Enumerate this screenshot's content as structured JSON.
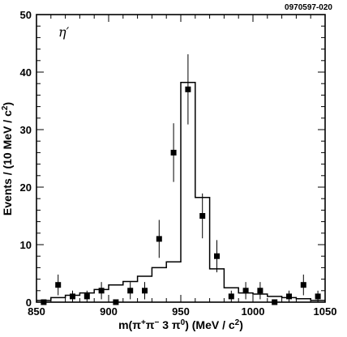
{
  "chart_data": {
    "type": "scatter",
    "title": "",
    "figure_id": "0970597-020",
    "annotation": "η′",
    "xlabel_parts": [
      "m(",
      "π",
      "+",
      "π",
      "−",
      " 3 ",
      "π",
      "0",
      ") (MeV / c",
      "2",
      ")"
    ],
    "ylabel_parts": [
      "Events / (10 MeV / c",
      "2",
      ")"
    ],
    "xlim": [
      850,
      1050
    ],
    "ylim": [
      0,
      50
    ],
    "x_ticks": [
      850,
      900,
      950,
      1000,
      1050
    ],
    "y_ticks": [
      0,
      10,
      20,
      30,
      40,
      50
    ],
    "grid": false,
    "series": [
      {
        "kind": "points_with_errors",
        "x": [
          855,
          865,
          875,
          885,
          895,
          905,
          915,
          925,
          935,
          945,
          955,
          965,
          975,
          985,
          995,
          1005,
          1015,
          1025,
          1035,
          1045
        ],
        "y": [
          0,
          3,
          1,
          1,
          2,
          0,
          2,
          2,
          11,
          26,
          37,
          15,
          8,
          1,
          2,
          2,
          0,
          1,
          3,
          1
        ],
        "yerr": [
          0,
          1.8,
          1.0,
          1.0,
          1.5,
          0,
          1.5,
          1.5,
          3.3,
          5.1,
          6.1,
          3.9,
          2.8,
          1.0,
          1.5,
          1.5,
          0,
          1.0,
          1.8,
          1.0
        ]
      },
      {
        "kind": "step_histogram",
        "bin_edges": [
          850,
          860,
          870,
          880,
          890,
          900,
          910,
          920,
          930,
          940,
          950,
          960,
          970,
          980,
          990,
          1000,
          1010,
          1020,
          1030,
          1040,
          1050
        ],
        "values": [
          0.3,
          0.8,
          1.2,
          1.6,
          2.2,
          3.0,
          3.6,
          4.5,
          6.0,
          7.0,
          38.2,
          18.2,
          5.8,
          2.5,
          1.6,
          1.4,
          1.0,
          0.8,
          0.6,
          0.3
        ]
      }
    ]
  }
}
